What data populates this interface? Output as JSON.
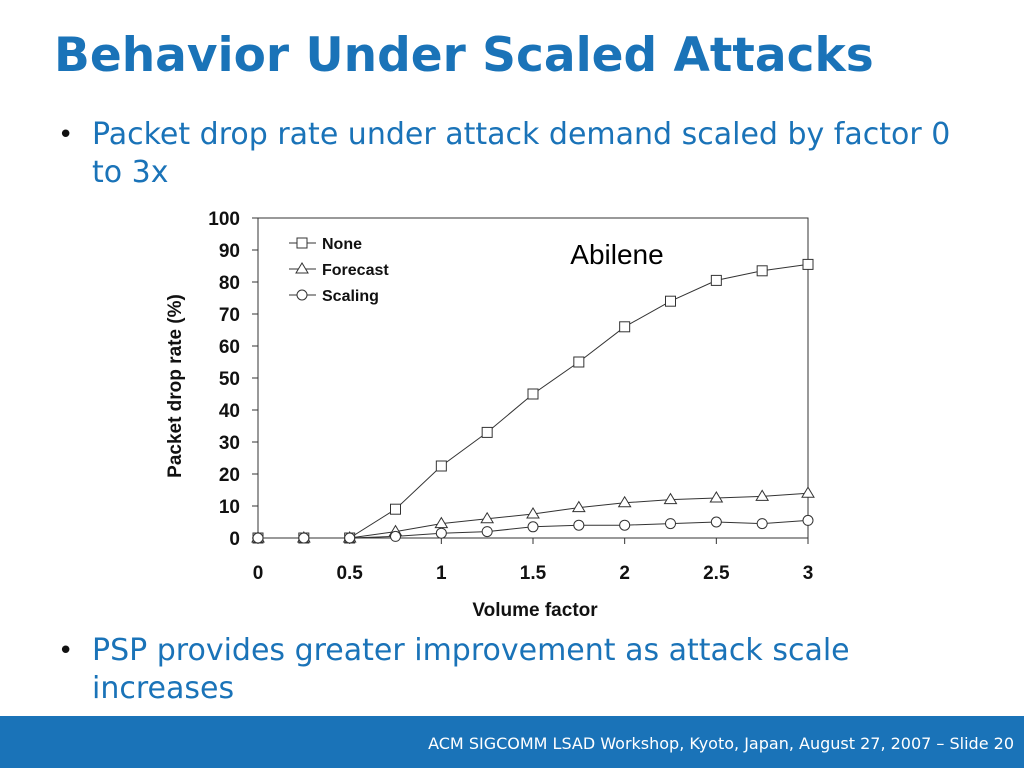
{
  "slide": {
    "title": "Behavior Under Scaled Attacks",
    "bullets": [
      "Packet drop rate under attack demand scaled by factor 0 to 3x",
      "PSP provides greater improvement as attack scale increases"
    ],
    "footer": "ACM SIGCOMM LSAD Workshop, Kyoto, Japan, August 27, 2007 – Slide 20"
  },
  "colors": {
    "accent": "#1a73b8",
    "footer_bg": "#1a73b8",
    "plot_line": "#333333"
  },
  "chart_data": {
    "type": "line",
    "title": "Abilene",
    "xlabel": "Volume factor",
    "ylabel": "Packet drop rate (%)",
    "xlim": [
      0,
      3
    ],
    "ylim": [
      0,
      100
    ],
    "xticks": [
      "0",
      "0.5",
      "1",
      "1.5",
      "2",
      "2.5",
      "3"
    ],
    "yticks": [
      "0",
      "10",
      "20",
      "30",
      "40",
      "50",
      "60",
      "70",
      "80",
      "90",
      "100"
    ],
    "x": [
      0,
      0.25,
      0.5,
      0.75,
      1,
      1.25,
      1.5,
      1.75,
      2,
      2.25,
      2.5,
      2.75,
      3
    ],
    "legend_position": "top-left",
    "grid": false,
    "series": [
      {
        "name": "None",
        "marker": "square",
        "values": [
          0,
          0,
          0,
          9,
          22.5,
          33,
          45,
          55,
          66,
          74,
          80.5,
          83.5,
          85.5
        ]
      },
      {
        "name": "Forecast",
        "marker": "triangle",
        "values": [
          0,
          0,
          0,
          2,
          4.5,
          6,
          7.5,
          9.5,
          11,
          12,
          12.5,
          13,
          14
        ]
      },
      {
        "name": "Scaling",
        "marker": "circle",
        "values": [
          0,
          0,
          0,
          0.5,
          1.5,
          2,
          3.5,
          4,
          4,
          4.5,
          5,
          4.5,
          5.5
        ]
      }
    ]
  }
}
